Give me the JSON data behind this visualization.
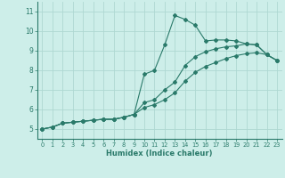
{
  "xlabel": "Humidex (Indice chaleur)",
  "background_color": "#cdeee9",
  "grid_color": "#aed8d2",
  "line_color": "#2a7a6a",
  "xlim": [
    -0.5,
    23.5
  ],
  "ylim": [
    4.5,
    11.5
  ],
  "xticks": [
    0,
    1,
    2,
    3,
    4,
    5,
    6,
    7,
    8,
    9,
    10,
    11,
    12,
    13,
    14,
    15,
    16,
    17,
    18,
    19,
    20,
    21,
    22,
    23
  ],
  "yticks": [
    5,
    6,
    7,
    8,
    9,
    10,
    11
  ],
  "curves": [
    {
      "x": [
        0,
        1,
        2,
        3,
        4,
        5,
        6,
        7,
        8,
        9,
        10,
        11,
        12,
        13,
        14,
        15,
        16,
        17,
        18,
        19,
        20,
        21,
        22,
        23
      ],
      "y": [
        5.0,
        5.1,
        5.3,
        5.35,
        5.4,
        5.45,
        5.5,
        5.5,
        5.6,
        5.75,
        7.8,
        8.0,
        9.3,
        10.8,
        10.6,
        10.3,
        9.5,
        9.55,
        9.55,
        9.5,
        9.35,
        9.3,
        8.8,
        8.5
      ]
    },
    {
      "x": [
        0,
        1,
        2,
        3,
        4,
        5,
        6,
        7,
        8,
        9,
        10,
        11,
        12,
        13,
        14,
        15,
        16,
        17,
        18,
        19,
        20,
        21,
        22,
        23
      ],
      "y": [
        5.0,
        5.1,
        5.3,
        5.35,
        5.4,
        5.45,
        5.5,
        5.5,
        5.6,
        5.75,
        6.35,
        6.5,
        7.0,
        7.4,
        8.25,
        8.7,
        8.95,
        9.1,
        9.2,
        9.25,
        9.35,
        9.3,
        8.8,
        8.5
      ]
    },
    {
      "x": [
        0,
        1,
        2,
        3,
        4,
        5,
        6,
        7,
        8,
        9,
        10,
        11,
        12,
        13,
        14,
        15,
        16,
        17,
        18,
        19,
        20,
        21,
        22,
        23
      ],
      "y": [
        5.0,
        5.1,
        5.3,
        5.35,
        5.4,
        5.45,
        5.5,
        5.5,
        5.6,
        5.75,
        6.1,
        6.25,
        6.5,
        6.85,
        7.45,
        7.9,
        8.2,
        8.4,
        8.6,
        8.75,
        8.85,
        8.9,
        8.8,
        8.5
      ]
    }
  ]
}
